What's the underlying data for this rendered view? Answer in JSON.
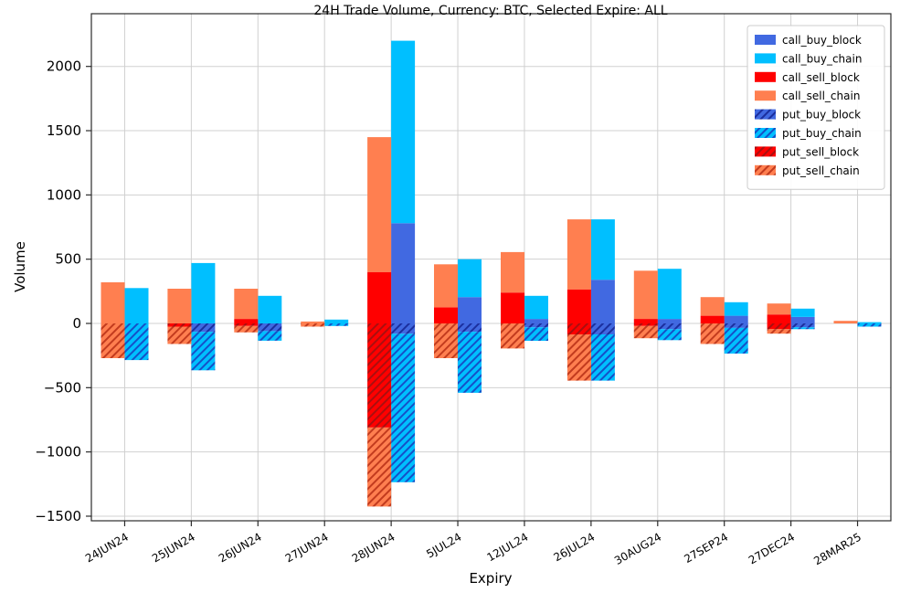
{
  "chart_data": {
    "type": "bar",
    "title": "24H Trade Volume, Currency: BTC, Selected Expire: ALL",
    "xlabel": "Expiry",
    "ylabel": "Volume",
    "grid": true,
    "legend_position": "upper right",
    "stacking": "two stacked bars per category: left=sell (call above 0, put below 0), right=buy (call above 0, put below 0)",
    "categories": [
      "24JUN24",
      "25JUN24",
      "26JUN24",
      "27JUN24",
      "28JUN24",
      "5JUL24",
      "12JUL24",
      "26JUL24",
      "30AUG24",
      "27SEP24",
      "27DEC24",
      "28MAR25"
    ],
    "ylim": [
      -1540,
      2410
    ],
    "yticks": {
      "values": [
        2000,
        1500,
        1000,
        500,
        0,
        -500,
        -1000,
        -1500
      ],
      "labels": [
        "2000",
        "1500",
        "1000",
        "500",
        "0",
        "−500",
        "−1000",
        "−1500"
      ]
    },
    "series": [
      {
        "name": "call_buy_block",
        "bar": "buy",
        "hatch": false,
        "color": "#4169e1",
        "values": [
          0,
          0,
          0,
          0,
          780,
          205,
          35,
          340,
          35,
          60,
          50,
          0
        ]
      },
      {
        "name": "call_buy_chain",
        "bar": "buy",
        "hatch": false,
        "color": "#00bfff",
        "values": [
          275,
          470,
          215,
          30,
          1420,
          295,
          180,
          470,
          390,
          105,
          65,
          10
        ]
      },
      {
        "name": "call_sell_block",
        "bar": "sell",
        "hatch": false,
        "color": "#ff0000",
        "values": [
          0,
          0,
          35,
          0,
          400,
          125,
          240,
          265,
          35,
          60,
          70,
          0
        ]
      },
      {
        "name": "call_sell_chain",
        "bar": "sell",
        "hatch": false,
        "color": "#ff7f50",
        "values": [
          320,
          270,
          235,
          15,
          1050,
          335,
          315,
          545,
          375,
          145,
          85,
          20
        ]
      },
      {
        "name": "put_buy_block",
        "bar": "buy",
        "hatch": true,
        "color": "#4169e1",
        "hatch_color": "#1b2f9e",
        "values": [
          0,
          -65,
          -60,
          0,
          -80,
          -65,
          -30,
          -85,
          -45,
          -35,
          -30,
          0
        ]
      },
      {
        "name": "put_buy_chain",
        "bar": "buy",
        "hatch": true,
        "color": "#00bfff",
        "hatch_color": "#1550c8",
        "values": [
          -285,
          -300,
          -75,
          -20,
          -1155,
          -475,
          -105,
          -360,
          -85,
          -200,
          -15,
          -25
        ]
      },
      {
        "name": "put_sell_block",
        "bar": "sell",
        "hatch": true,
        "color": "#ff0000",
        "hatch_color": "#aa0f0f",
        "values": [
          0,
          -25,
          -20,
          0,
          -810,
          0,
          0,
          -85,
          -20,
          0,
          -45,
          0
        ]
      },
      {
        "name": "put_sell_chain",
        "bar": "sell",
        "hatch": true,
        "color": "#ff7f50",
        "hatch_color": "#c23b1e",
        "values": [
          -270,
          -135,
          -50,
          -25,
          -615,
          -270,
          -195,
          -360,
          -95,
          -160,
          -35,
          0
        ]
      }
    ],
    "colors": {
      "grid": "#d0d0d0",
      "spine": "#2b2b2b",
      "legend_border": "#cccccc",
      "background": "#ffffff"
    }
  }
}
